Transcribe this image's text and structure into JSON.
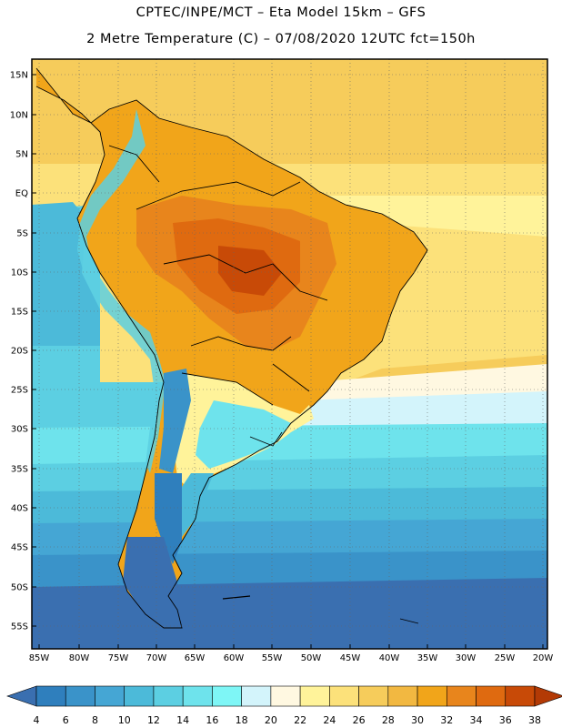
{
  "header": {
    "line1": "CPTEC/INPE/MCT –  Eta Model 15km – GFS",
    "line2": "2 Metre Temperature (C) – 07/08/2020 12UTC fct=150h"
  },
  "axes": {
    "lat_labels": [
      "15N",
      "10N",
      "5N",
      "EQ",
      "5S",
      "10S",
      "15S",
      "20S",
      "25S",
      "30S",
      "35S",
      "40S",
      "45S",
      "50S",
      "55S"
    ],
    "lon_labels": [
      "85W",
      "80W",
      "75W",
      "70W",
      "65W",
      "60W",
      "55W",
      "50W",
      "45W",
      "40W",
      "35W",
      "30W",
      "25W",
      "20W"
    ]
  },
  "colorbar": {
    "labels": [
      "4",
      "6",
      "8",
      "10",
      "12",
      "14",
      "16",
      "18",
      "20",
      "22",
      "24",
      "26",
      "28",
      "30",
      "32",
      "34",
      "36",
      "38"
    ],
    "colors": [
      "#3a6fb0",
      "#2f7fbd",
      "#3a93c9",
      "#45a6d4",
      "#4cbad9",
      "#5ccfe2",
      "#6ee3ec",
      "#7ef6f6",
      "#d3f4fb",
      "#fff8e1",
      "#fff39a",
      "#fce17a",
      "#f6cc5b",
      "#f2b841",
      "#f1a51a",
      "#e8851c",
      "#df6a10",
      "#c84a07",
      "#b33a05"
    ]
  }
}
